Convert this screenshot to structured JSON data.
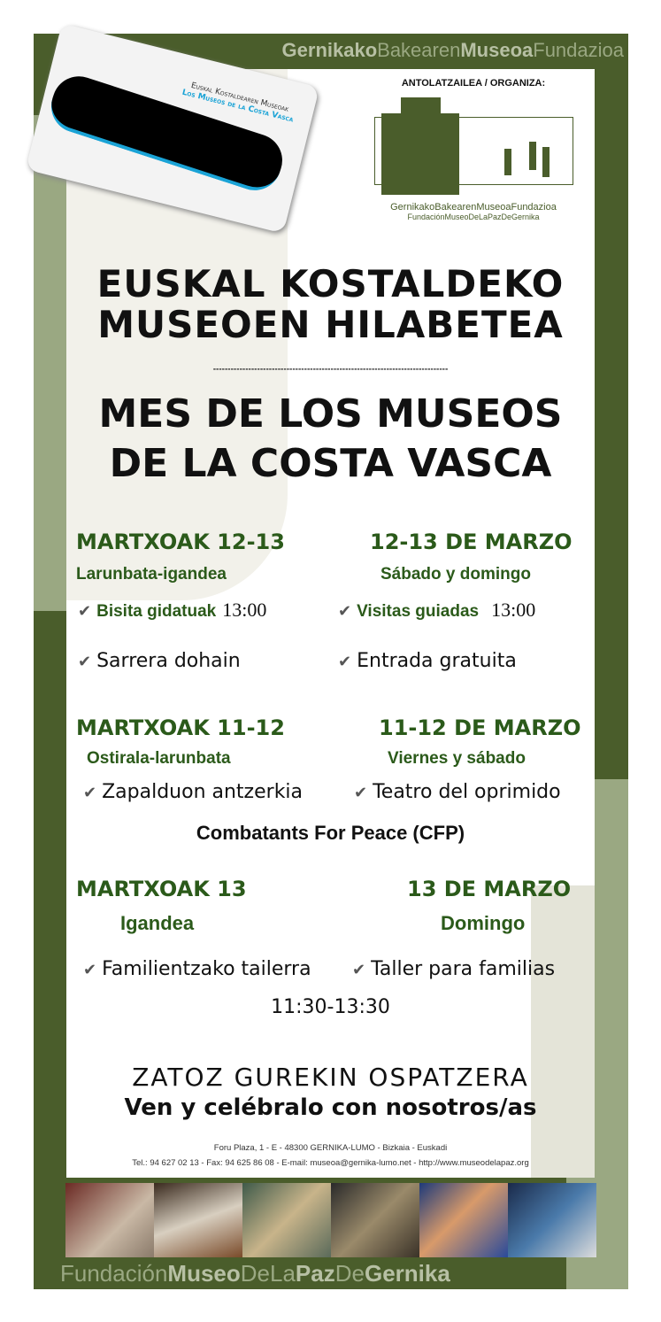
{
  "header": {
    "title_parts": [
      "Gernikako",
      "Bakearen",
      "Museoa",
      "Fundazioa"
    ]
  },
  "card": {
    "line1": "Euskal Kostaldearen Museoak",
    "line2": "Los Museos de la Costa Vasca"
  },
  "organizer": {
    "label": "ANTOLATZAILEA / ORGANIZA:",
    "name_eu": "GernikakoBakearenMuseoaFundazioa",
    "name_es": "FundaciónMuseoDeLaPazDeGernika"
  },
  "title": {
    "eu": [
      "EUSKAL KOSTALDEKO",
      "MUSEOEN HILABETEA"
    ],
    "divider": "--------------------------------------------------------------------------------",
    "es": [
      "MES DE LOS MUSEOS",
      "DE LA COSTA VASCA"
    ]
  },
  "events": [
    {
      "date_eu": "MARTXOAK 12-13",
      "day_eu": "Larunbata-igandea",
      "date_es": "12-13 DE MARZO",
      "day_es": "Sábado y domingo",
      "items": [
        {
          "eu": "Bisita gidatuak",
          "eu_time": "13:00",
          "es": "Visitas guiadas",
          "es_time": "13:00"
        },
        {
          "eu": "Sarrera dohain",
          "es": "Entrada gratuita"
        }
      ]
    },
    {
      "date_eu": "MARTXOAK 11-12",
      "day_eu": "Ostirala-larunbata",
      "date_es": "11-12 DE MARZO",
      "day_es": "Viernes y sábado",
      "items": [
        {
          "eu": "Zapalduon antzerkia",
          "es": "Teatro del oprimido"
        }
      ],
      "note": "Combatants For Peace (CFP)"
    },
    {
      "date_eu": "MARTXOAK 13",
      "day_eu": "Igandea",
      "date_es": "13 DE MARZO",
      "day_es": "Domingo",
      "items": [
        {
          "eu": "Familientzako tailerra",
          "es": "Taller para familias"
        }
      ],
      "time": "11:30-13:30"
    }
  ],
  "cta": {
    "eu": "ZATOZ GUREKIN OSPATZERA",
    "es": "Ven y celébralo con nosotros/as"
  },
  "address": {
    "line1": "Foru Plaza, 1 - E - 48300 GERNIKA-LUMO  - Bizkaia - Euskadi",
    "line2": "Tel.: 94 627 02 13 - Fax: 94 625 86 08 - E-mail: museoa@gernika-lumo.net - http://www.museodelapaz.org"
  },
  "footer": {
    "parts": [
      "Fundación",
      "Museo",
      "DeLa",
      "Paz",
      "De",
      "Gernika"
    ]
  },
  "icons": {
    "check": "checkbox-check-icon"
  },
  "colors": {
    "frame": "#4a5d2b",
    "sage": "#9aa882",
    "heading_green": "#2b5a1a"
  }
}
